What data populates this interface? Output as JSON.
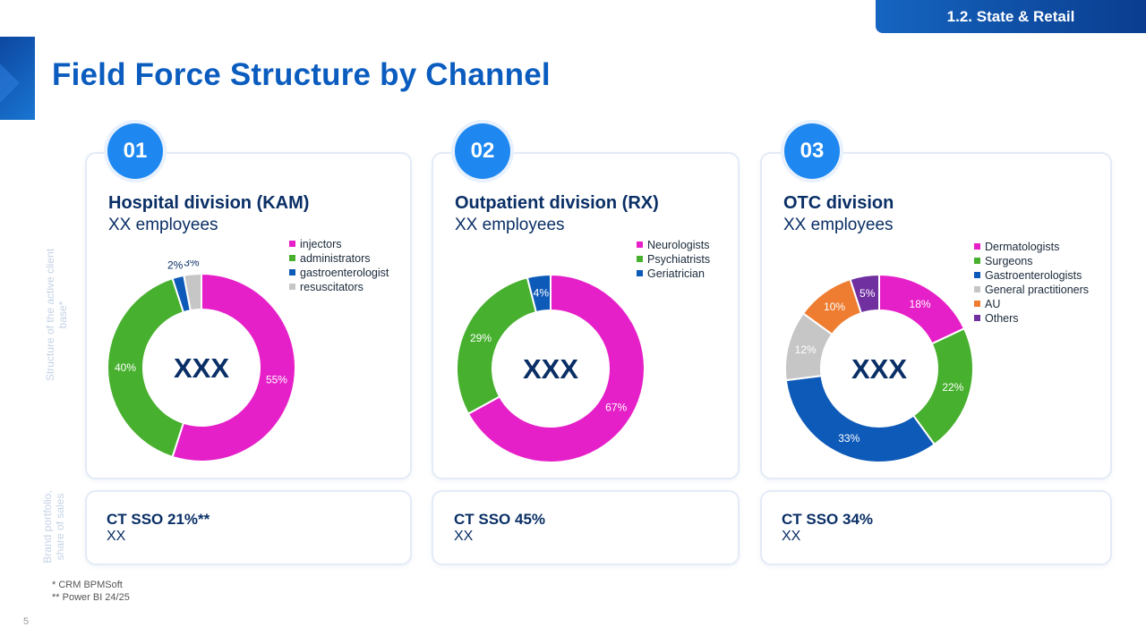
{
  "header": {
    "section_tag": "1.2. State & Retail",
    "title": "Field Force Structure by Channel"
  },
  "side_labels": {
    "structure": "Structure of the active client base*",
    "brand": "Brand portfolio, share of sales"
  },
  "cards": [
    {
      "number": "01",
      "title": "Hospital division (KAM)",
      "subtitle": "XX employees",
      "center": "XXX",
      "sso_title": "CT SSO 21%**",
      "sso_value": "XX"
    },
    {
      "number": "02",
      "title": "Outpatient division (RX)",
      "subtitle": "XX employees",
      "center": "XXX",
      "sso_title": "CT SSO 45%",
      "sso_value": "XX"
    },
    {
      "number": "03",
      "title": "OTC division",
      "subtitle": "XX employees",
      "center": "XXX",
      "sso_title": "CT SSO 34%",
      "sso_value": "XX"
    }
  ],
  "chart_data": [
    {
      "type": "pie",
      "title": "Hospital division (KAM)",
      "categories": [
        "injectors",
        "administrators",
        "gastroenterologist",
        "resuscitators"
      ],
      "values": [
        55,
        40,
        2,
        3
      ],
      "labels": [
        "55%",
        "40%",
        "2%",
        "3%"
      ],
      "colors": [
        "#e620c8",
        "#47b02e",
        "#0e5ab8",
        "#c6c6c6"
      ]
    },
    {
      "type": "pie",
      "title": "Outpatient division (RX)",
      "categories": [
        "Neurologists",
        "Psychiatrists",
        "Geriatrician"
      ],
      "values": [
        67,
        29,
        4
      ],
      "labels": [
        "67%",
        "29%",
        "4%"
      ],
      "colors": [
        "#e620c8",
        "#47b02e",
        "#0e5ab8"
      ]
    },
    {
      "type": "pie",
      "title": "OTC division",
      "categories": [
        "Dermatologists",
        "Surgeons",
        "Gastroenterologists",
        "General practitioners",
        "AU",
        "Others"
      ],
      "values": [
        18,
        22,
        33,
        12,
        10,
        5
      ],
      "labels": [
        "18%",
        "22%",
        "33%",
        "12%",
        "10%",
        "5%"
      ],
      "colors": [
        "#e620c8",
        "#47b02e",
        "#0e5ab8",
        "#c6c6c6",
        "#ee7d31",
        "#7030a0"
      ]
    }
  ],
  "footnotes": [
    "* CRM BPMSoft",
    "** Power BI 24/25"
  ],
  "page_number": "5"
}
